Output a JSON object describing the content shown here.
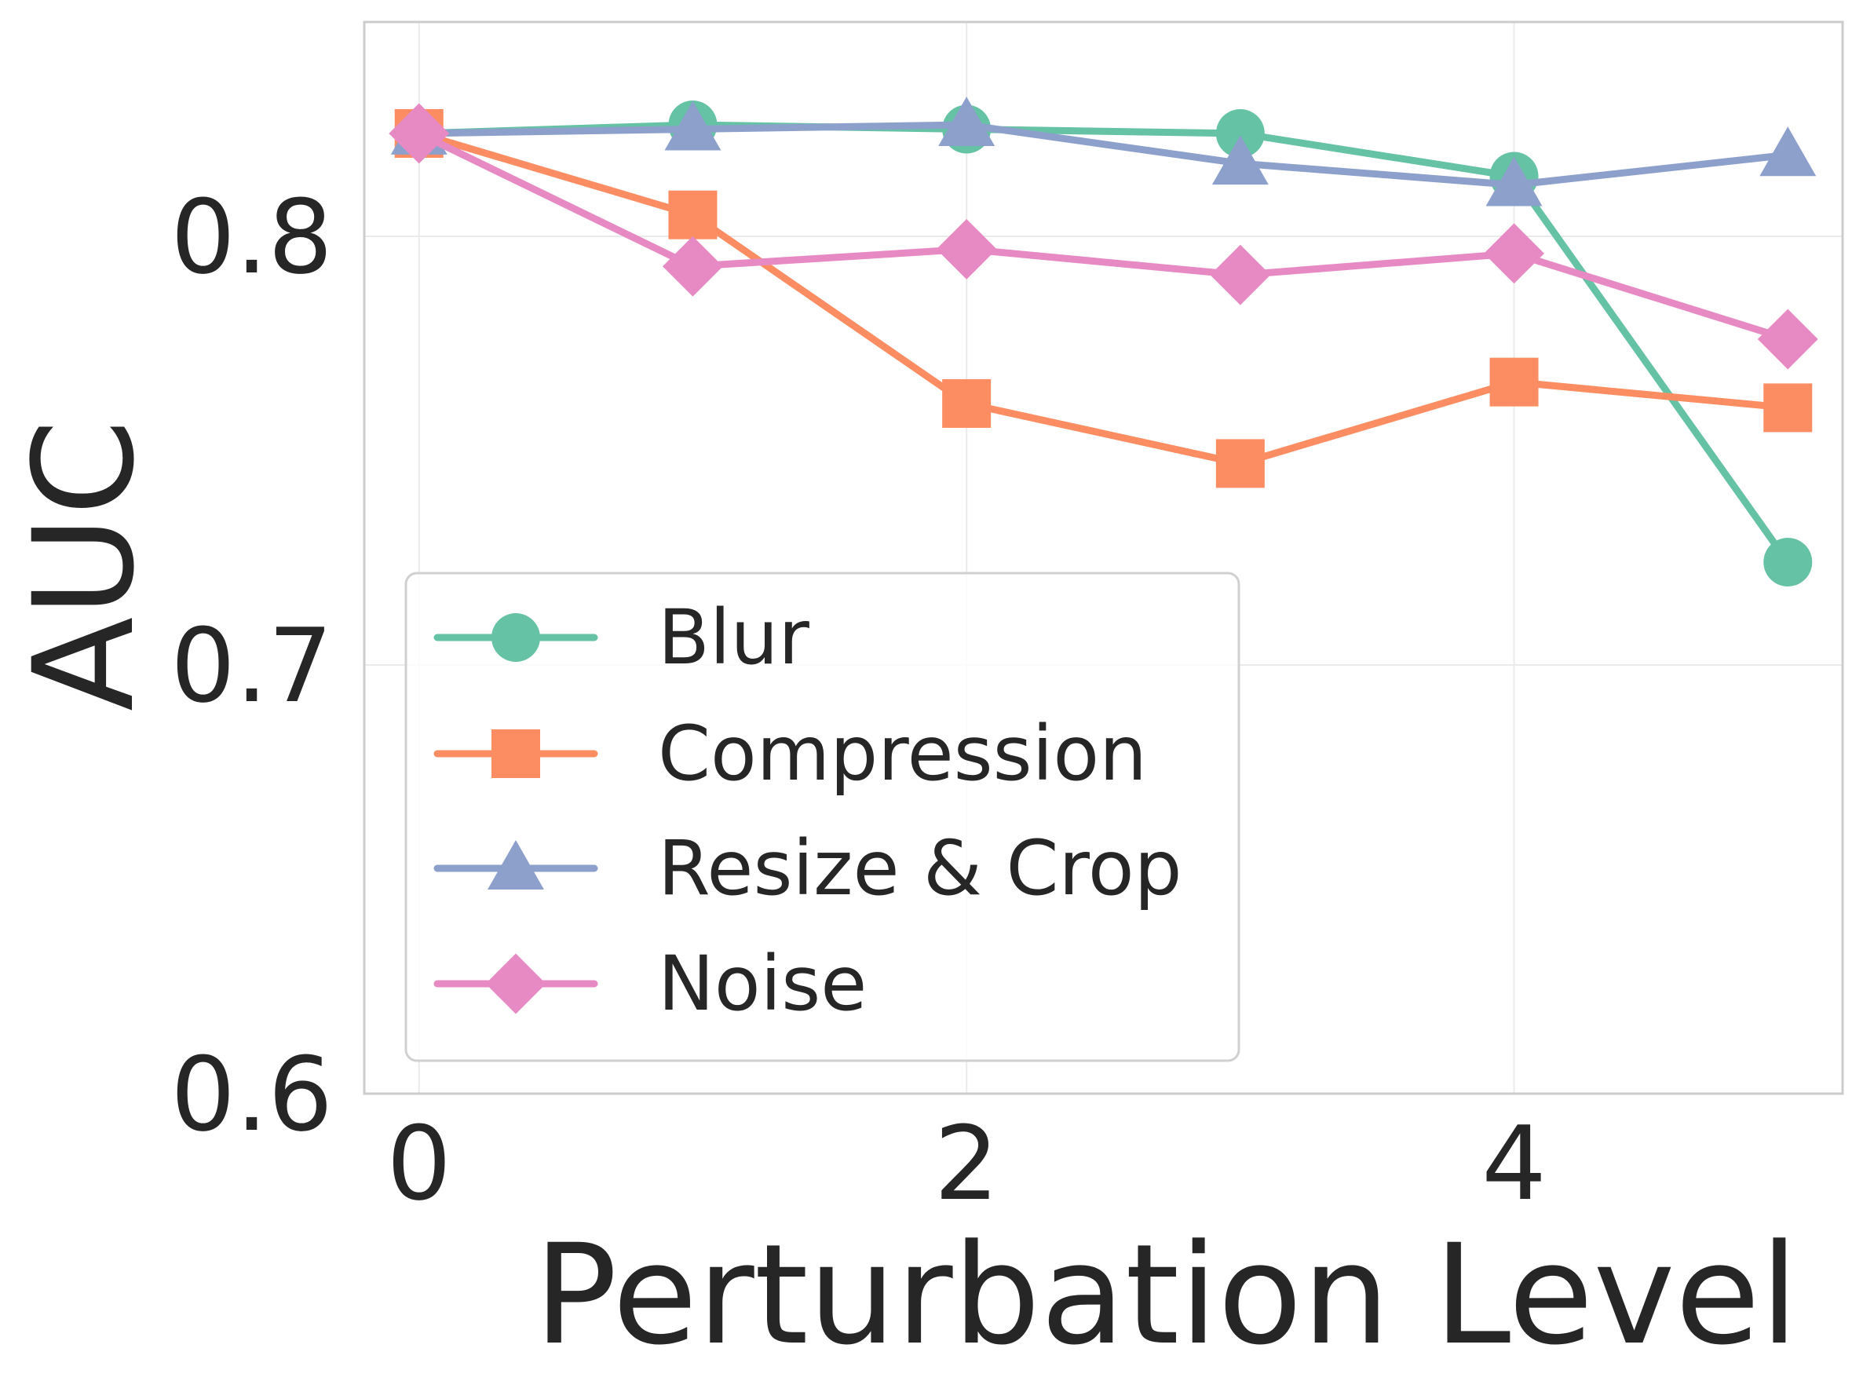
{
  "chart_data": {
    "type": "line",
    "title": "",
    "xlabel": "Perturbation Level",
    "ylabel": "AUC",
    "xlim": [
      -0.2,
      5.2
    ],
    "ylim": [
      0.6,
      0.85
    ],
    "xticks": [
      0,
      2,
      4
    ],
    "yticks": [
      0.6,
      0.7,
      0.8
    ],
    "xtick_labels": [
      "0",
      "2",
      "4"
    ],
    "ytick_labels": [
      "0.6",
      "0.7",
      "0.8"
    ],
    "grid": true,
    "legend_position": "lower-left",
    "x": [
      0,
      1,
      2,
      3,
      4,
      5
    ],
    "series": [
      {
        "name": "Blur",
        "marker": "circle",
        "color": "#66c2a5",
        "values": [
          0.824,
          0.826,
          0.825,
          0.824,
          0.814,
          0.724
        ]
      },
      {
        "name": "Compression",
        "marker": "square",
        "color": "#fc8d62",
        "values": [
          0.824,
          0.805,
          0.761,
          0.747,
          0.766,
          0.76
        ]
      },
      {
        "name": "Resize & Crop",
        "marker": "triangle",
        "color": "#8da0cb",
        "values": [
          0.824,
          0.825,
          0.826,
          0.817,
          0.812,
          0.819
        ]
      },
      {
        "name": "Noise",
        "marker": "diamond",
        "color": "#e78ac3",
        "values": [
          0.824,
          0.793,
          0.797,
          0.791,
          0.796,
          0.776
        ]
      }
    ]
  }
}
